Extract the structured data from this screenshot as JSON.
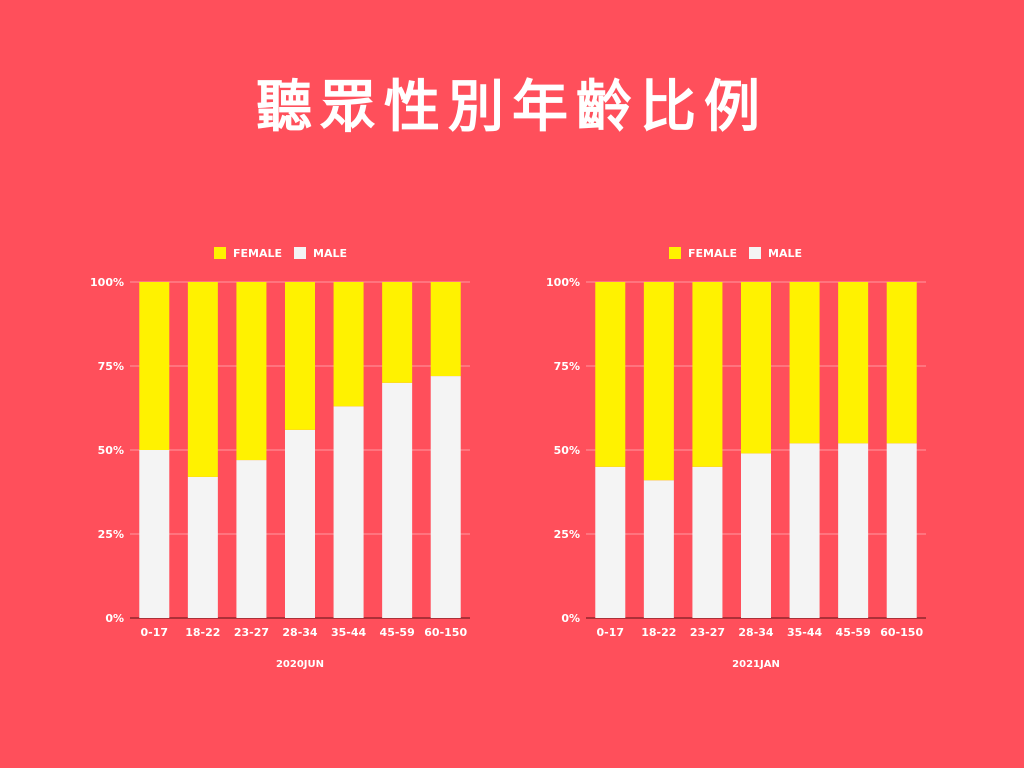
{
  "title": "聽眾性別年齡比例",
  "colors": {
    "background": "#FF4F5B",
    "female": "#FFF200",
    "male": "#F4F4F4",
    "text": "#FFFFFF"
  },
  "chart_data": [
    {
      "type": "bar",
      "stacked": true,
      "percent": true,
      "title": "",
      "xlabel": "2020JUN",
      "ylabel": "",
      "ylim": [
        0,
        100
      ],
      "y_ticks": [
        "0%",
        "25%",
        "50%",
        "75%",
        "100%"
      ],
      "legend_position": "top-center",
      "grid": true,
      "categories": [
        "0-17",
        "18-22",
        "23-27",
        "28-34",
        "35-44",
        "45-59",
        "60-150"
      ],
      "series": [
        {
          "name": "FEMALE",
          "color": "#FFF200",
          "values": [
            50,
            58,
            53,
            44,
            37,
            30,
            28
          ]
        },
        {
          "name": "MALE",
          "color": "#F4F4F4",
          "values": [
            50,
            42,
            47,
            56,
            63,
            70,
            72
          ]
        }
      ]
    },
    {
      "type": "bar",
      "stacked": true,
      "percent": true,
      "title": "",
      "xlabel": "2021JAN",
      "ylabel": "",
      "ylim": [
        0,
        100
      ],
      "y_ticks": [
        "0%",
        "25%",
        "50%",
        "75%",
        "100%"
      ],
      "legend_position": "top-center",
      "grid": true,
      "categories": [
        "0-17",
        "18-22",
        "23-27",
        "28-34",
        "35-44",
        "45-59",
        "60-150"
      ],
      "series": [
        {
          "name": "FEMALE",
          "color": "#FFF200",
          "values": [
            55,
            59,
            55,
            51,
            48,
            48,
            48
          ]
        },
        {
          "name": "MALE",
          "color": "#F4F4F4",
          "values": [
            45,
            41,
            45,
            49,
            52,
            52,
            52
          ]
        }
      ]
    }
  ]
}
